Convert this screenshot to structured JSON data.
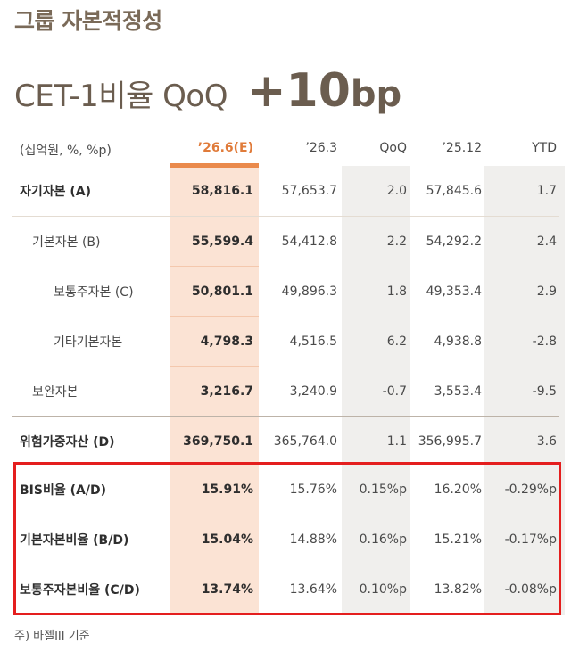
{
  "section_title": "그룹 자본적정성",
  "headline": {
    "label": "CET-1비율 QoQ",
    "value": "+10",
    "unit": "bp"
  },
  "table": {
    "unit_label": "(십억원, %, %p)",
    "columns": [
      "’26.6(E)",
      "’26.3",
      "QoQ",
      "’25.12",
      "YTD"
    ],
    "rows": [
      {
        "label": "자기자본 (A)",
        "values": [
          "58,816.1",
          "57,653.7",
          "2.0",
          "57,845.6",
          "1.7"
        ]
      },
      {
        "label": "기본자본 (B)",
        "values": [
          "55,599.4",
          "54,412.8",
          "2.2",
          "54,292.2",
          "2.4"
        ]
      },
      {
        "label": "보통주자본 (C)",
        "values": [
          "50,801.1",
          "49,896.3",
          "1.8",
          "49,353.4",
          "2.9"
        ]
      },
      {
        "label": "기타기본자본",
        "values": [
          "4,798.3",
          "4,516.5",
          "6.2",
          "4,938.8",
          "-2.8"
        ]
      },
      {
        "label": "보완자본",
        "values": [
          "3,216.7",
          "3,240.9",
          "-0.7",
          "3,553.4",
          "-9.5"
        ]
      },
      {
        "label": "위험가중자산 (D)",
        "values": [
          "369,750.1",
          "365,764.0",
          "1.1",
          "356,995.7",
          "3.6"
        ]
      },
      {
        "label": "BIS비율 (A/D)",
        "values": [
          "15.91%",
          "15.76%",
          "0.15%p",
          "16.20%",
          "-0.29%p"
        ]
      },
      {
        "label": "기본자본비율 (B/D)",
        "values": [
          "15.04%",
          "14.88%",
          "0.16%p",
          "15.21%",
          "-0.17%p"
        ]
      },
      {
        "label": "보통주자본비율 (C/D)",
        "values": [
          "13.74%",
          "13.64%",
          "0.10%p",
          "13.82%",
          "-0.08%p"
        ]
      }
    ]
  },
  "footnote": "주) 바젤III 기준",
  "colors": {
    "accent": "#ea8a4c",
    "highlight_column": "#fbe3d4",
    "callout_box": "#e41e1e",
    "title_brown": "#6b5d4f"
  }
}
